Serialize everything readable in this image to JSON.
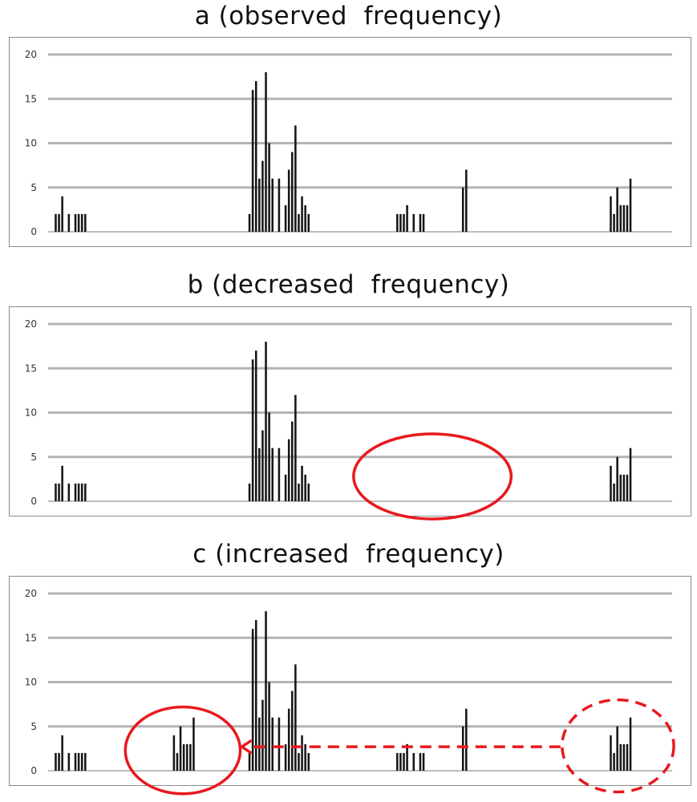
{
  "chart_data": [
    {
      "type": "bar",
      "title": "a (observed  frequency)",
      "ylim": [
        0,
        20
      ],
      "yticks": [
        "0",
        "5",
        "10",
        "15",
        "20"
      ],
      "grid": true,
      "bars": [
        {
          "x": 2,
          "y": 2
        },
        {
          "x": 3,
          "y": 2
        },
        {
          "x": 4,
          "y": 4
        },
        {
          "x": 6,
          "y": 2
        },
        {
          "x": 8,
          "y": 2
        },
        {
          "x": 9,
          "y": 2
        },
        {
          "x": 10,
          "y": 2
        },
        {
          "x": 11,
          "y": 2
        },
        {
          "x": 61,
          "y": 2
        },
        {
          "x": 62,
          "y": 16
        },
        {
          "x": 63,
          "y": 17
        },
        {
          "x": 64,
          "y": 6
        },
        {
          "x": 65,
          "y": 8
        },
        {
          "x": 66,
          "y": 18
        },
        {
          "x": 67,
          "y": 10
        },
        {
          "x": 68,
          "y": 6
        },
        {
          "x": 70,
          "y": 6
        },
        {
          "x": 72,
          "y": 3
        },
        {
          "x": 73,
          "y": 7
        },
        {
          "x": 74,
          "y": 9
        },
        {
          "x": 75,
          "y": 12
        },
        {
          "x": 76,
          "y": 2
        },
        {
          "x": 77,
          "y": 4
        },
        {
          "x": 78,
          "y": 3
        },
        {
          "x": 79,
          "y": 2
        },
        {
          "x": 106,
          "y": 2
        },
        {
          "x": 107,
          "y": 2
        },
        {
          "x": 108,
          "y": 2
        },
        {
          "x": 109,
          "y": 3
        },
        {
          "x": 111,
          "y": 2
        },
        {
          "x": 113,
          "y": 2
        },
        {
          "x": 114,
          "y": 2
        },
        {
          "x": 126,
          "y": 5
        },
        {
          "x": 127,
          "y": 7
        },
        {
          "x": 171,
          "y": 4
        },
        {
          "x": 172,
          "y": 2
        },
        {
          "x": 173,
          "y": 5
        },
        {
          "x": 174,
          "y": 3
        },
        {
          "x": 175,
          "y": 3
        },
        {
          "x": 176,
          "y": 3
        },
        {
          "x": 177,
          "y": 6
        }
      ]
    },
    {
      "type": "bar",
      "title": "b (decreased  frequency)",
      "ylim": [
        0,
        20
      ],
      "yticks": [
        "0",
        "5",
        "10",
        "15",
        "20"
      ],
      "grid": true,
      "bars": [
        {
          "x": 2,
          "y": 2
        },
        {
          "x": 3,
          "y": 2
        },
        {
          "x": 4,
          "y": 4
        },
        {
          "x": 6,
          "y": 2
        },
        {
          "x": 8,
          "y": 2
        },
        {
          "x": 9,
          "y": 2
        },
        {
          "x": 10,
          "y": 2
        },
        {
          "x": 11,
          "y": 2
        },
        {
          "x": 61,
          "y": 2
        },
        {
          "x": 62,
          "y": 16
        },
        {
          "x": 63,
          "y": 17
        },
        {
          "x": 64,
          "y": 6
        },
        {
          "x": 65,
          "y": 8
        },
        {
          "x": 66,
          "y": 18
        },
        {
          "x": 67,
          "y": 10
        },
        {
          "x": 68,
          "y": 6
        },
        {
          "x": 70,
          "y": 6
        },
        {
          "x": 72,
          "y": 3
        },
        {
          "x": 73,
          "y": 7
        },
        {
          "x": 74,
          "y": 9
        },
        {
          "x": 75,
          "y": 12
        },
        {
          "x": 76,
          "y": 2
        },
        {
          "x": 77,
          "y": 4
        },
        {
          "x": 78,
          "y": 3
        },
        {
          "x": 79,
          "y": 2
        },
        {
          "x": 171,
          "y": 4
        },
        {
          "x": 172,
          "y": 2
        },
        {
          "x": 173,
          "y": 5
        },
        {
          "x": 174,
          "y": 3
        },
        {
          "x": 175,
          "y": 3
        },
        {
          "x": 176,
          "y": 3
        },
        {
          "x": 177,
          "y": 6
        }
      ],
      "annotations": [
        {
          "kind": "ellipse",
          "style": "solid",
          "color": "#e8191e",
          "cx": 117,
          "cy": 2.8,
          "rx": 24,
          "ry": 4.8
        }
      ]
    },
    {
      "type": "bar",
      "title": "c (increased  frequency)",
      "ylim": [
        0,
        20
      ],
      "yticks": [
        "0",
        "5",
        "10",
        "15",
        "20"
      ],
      "grid": true,
      "bars": [
        {
          "x": 2,
          "y": 2
        },
        {
          "x": 3,
          "y": 2
        },
        {
          "x": 4,
          "y": 4
        },
        {
          "x": 6,
          "y": 2
        },
        {
          "x": 8,
          "y": 2
        },
        {
          "x": 9,
          "y": 2
        },
        {
          "x": 10,
          "y": 2
        },
        {
          "x": 11,
          "y": 2
        },
        {
          "x": 38,
          "y": 4
        },
        {
          "x": 39,
          "y": 2
        },
        {
          "x": 40,
          "y": 5
        },
        {
          "x": 41,
          "y": 3
        },
        {
          "x": 42,
          "y": 3
        },
        {
          "x": 43,
          "y": 3
        },
        {
          "x": 44,
          "y": 6
        },
        {
          "x": 61,
          "y": 2
        },
        {
          "x": 62,
          "y": 16
        },
        {
          "x": 63,
          "y": 17
        },
        {
          "x": 64,
          "y": 6
        },
        {
          "x": 65,
          "y": 8
        },
        {
          "x": 66,
          "y": 18
        },
        {
          "x": 67,
          "y": 10
        },
        {
          "x": 68,
          "y": 6
        },
        {
          "x": 70,
          "y": 6
        },
        {
          "x": 72,
          "y": 3
        },
        {
          "x": 73,
          "y": 7
        },
        {
          "x": 74,
          "y": 9
        },
        {
          "x": 75,
          "y": 12
        },
        {
          "x": 76,
          "y": 2
        },
        {
          "x": 77,
          "y": 4
        },
        {
          "x": 78,
          "y": 3
        },
        {
          "x": 79,
          "y": 2
        },
        {
          "x": 106,
          "y": 2
        },
        {
          "x": 107,
          "y": 2
        },
        {
          "x": 108,
          "y": 2
        },
        {
          "x": 109,
          "y": 3
        },
        {
          "x": 111,
          "y": 2
        },
        {
          "x": 113,
          "y": 2
        },
        {
          "x": 114,
          "y": 2
        },
        {
          "x": 126,
          "y": 5
        },
        {
          "x": 127,
          "y": 7
        },
        {
          "x": 171,
          "y": 4
        },
        {
          "x": 172,
          "y": 2
        },
        {
          "x": 173,
          "y": 5
        },
        {
          "x": 174,
          "y": 3
        },
        {
          "x": 175,
          "y": 3
        },
        {
          "x": 176,
          "y": 3
        },
        {
          "x": 177,
          "y": 6
        }
      ],
      "annotations": [
        {
          "kind": "ellipse",
          "style": "solid",
          "color": "#e8191e",
          "cx": 41,
          "cy": 2.3,
          "rx": 17.5,
          "ry": 4.9
        },
        {
          "kind": "ellipse",
          "style": "dashed",
          "color": "#e8191e",
          "cx": 173.5,
          "cy": 2.8,
          "rx": 17,
          "ry": 5.2
        },
        {
          "kind": "arrow",
          "style": "dashed",
          "color": "#e8191e",
          "x1": 156,
          "y1": 2.7,
          "x2": 59,
          "y2": 2.7
        }
      ]
    }
  ]
}
